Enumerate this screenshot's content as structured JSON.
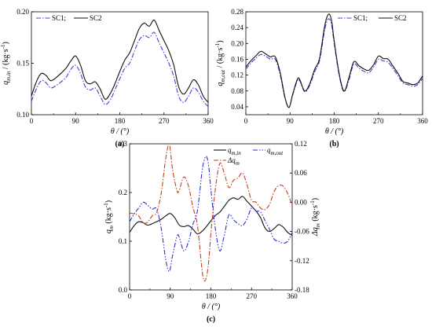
{
  "chart_data": [
    {
      "id": "a",
      "type": "line",
      "panel_label": "(a)",
      "xlabel": "θ / (°)",
      "ylabel": "q_m,in / (kg·s⁻¹)",
      "ylabel_main": "q",
      "ylabel_sub": "m,in",
      "ylabel_unit": " / (kg·s",
      "ylabel_sup": "-1",
      "ylabel_close": ")",
      "xlim": [
        0,
        360
      ],
      "ylim": [
        0.1,
        0.2
      ],
      "xticks": [
        0,
        90,
        180,
        270,
        360
      ],
      "yticks": [
        0.1,
        0.15,
        0.2
      ],
      "ytick_labels": [
        "0.10",
        "0.15",
        "0.20"
      ],
      "legend": [
        "SC1;",
        "SC2"
      ],
      "legend_position": "top-left",
      "series": [
        {
          "name": "SC1;",
          "style": "dashdot",
          "color": "#4040e0",
          "x": [
            0,
            10,
            20,
            30,
            40,
            55,
            70,
            80,
            90,
            100,
            110,
            120,
            130,
            140,
            150,
            160,
            170,
            180,
            190,
            200,
            210,
            220,
            230,
            240,
            250,
            260,
            270,
            280,
            290,
            300,
            310,
            320,
            330,
            340,
            350,
            360
          ],
          "y": [
            0.113,
            0.125,
            0.133,
            0.131,
            0.126,
            0.13,
            0.136,
            0.144,
            0.148,
            0.14,
            0.127,
            0.124,
            0.126,
            0.118,
            0.11,
            0.114,
            0.124,
            0.135,
            0.145,
            0.15,
            0.162,
            0.173,
            0.177,
            0.175,
            0.18,
            0.17,
            0.16,
            0.15,
            0.137,
            0.118,
            0.112,
            0.118,
            0.126,
            0.122,
            0.113,
            0.108
          ]
        },
        {
          "name": "SC2",
          "style": "solid",
          "color": "#111111",
          "x": [
            0,
            10,
            20,
            30,
            40,
            55,
            70,
            80,
            90,
            100,
            110,
            120,
            130,
            140,
            150,
            160,
            170,
            180,
            190,
            200,
            210,
            220,
            230,
            240,
            250,
            260,
            270,
            280,
            290,
            300,
            310,
            320,
            330,
            340,
            350,
            360
          ],
          "y": [
            0.118,
            0.132,
            0.14,
            0.138,
            0.133,
            0.138,
            0.145,
            0.152,
            0.157,
            0.148,
            0.133,
            0.13,
            0.132,
            0.125,
            0.115,
            0.12,
            0.13,
            0.142,
            0.153,
            0.16,
            0.172,
            0.184,
            0.189,
            0.186,
            0.192,
            0.182,
            0.172,
            0.162,
            0.148,
            0.127,
            0.12,
            0.126,
            0.134,
            0.129,
            0.118,
            0.112
          ]
        }
      ]
    },
    {
      "id": "b",
      "type": "line",
      "panel_label": "(b)",
      "xlabel": "θ / (°)",
      "ylabel": "q_m,out / (kg·s⁻¹)",
      "ylabel_main": "q",
      "ylabel_sub": "m,out",
      "ylabel_unit": " / (kg·s",
      "ylabel_sup": "-1",
      "ylabel_close": ")",
      "xlim": [
        0,
        360
      ],
      "ylim": [
        0.02,
        0.28
      ],
      "xticks": [
        0,
        90,
        180,
        270,
        360
      ],
      "yticks": [
        0.04,
        0.08,
        0.12,
        0.16,
        0.2,
        0.24,
        0.28
      ],
      "ytick_labels": [
        "0.04",
        "0.08",
        "0.12",
        "0.16",
        "0.20",
        "0.24",
        "0.28"
      ],
      "legend": [
        "SC1;",
        "SC2"
      ],
      "legend_position": "top-right",
      "series": [
        {
          "name": "SC1;",
          "style": "dashdot",
          "color": "#4040e0",
          "x": [
            0,
            10,
            20,
            30,
            40,
            50,
            60,
            70,
            80,
            88,
            95,
            105,
            110,
            120,
            130,
            140,
            150,
            160,
            165,
            170,
            175,
            180,
            190,
            200,
            210,
            220,
            230,
            240,
            250,
            260,
            270,
            280,
            290,
            300,
            310,
            320,
            330,
            340,
            350,
            360
          ],
          "y": [
            0.135,
            0.15,
            0.162,
            0.172,
            0.168,
            0.16,
            0.16,
            0.12,
            0.06,
            0.04,
            0.068,
            0.106,
            0.105,
            0.078,
            0.094,
            0.128,
            0.156,
            0.23,
            0.255,
            0.262,
            0.245,
            0.2,
            0.12,
            0.078,
            0.108,
            0.148,
            0.138,
            0.13,
            0.126,
            0.14,
            0.16,
            0.156,
            0.152,
            0.136,
            0.118,
            0.1,
            0.096,
            0.092,
            0.096,
            0.112
          ]
        },
        {
          "name": "SC2",
          "style": "solid",
          "color": "#111111",
          "x": [
            0,
            10,
            20,
            30,
            40,
            50,
            60,
            70,
            80,
            88,
            95,
            105,
            110,
            120,
            130,
            140,
            150,
            160,
            165,
            170,
            175,
            180,
            190,
            200,
            210,
            220,
            230,
            240,
            250,
            260,
            270,
            280,
            290,
            300,
            310,
            320,
            330,
            340,
            350,
            360
          ],
          "y": [
            0.14,
            0.156,
            0.168,
            0.18,
            0.174,
            0.166,
            0.166,
            0.126,
            0.062,
            0.038,
            0.07,
            0.11,
            0.108,
            0.08,
            0.098,
            0.134,
            0.162,
            0.24,
            0.266,
            0.274,
            0.255,
            0.206,
            0.124,
            0.08,
            0.114,
            0.154,
            0.144,
            0.136,
            0.132,
            0.146,
            0.168,
            0.162,
            0.16,
            0.142,
            0.124,
            0.104,
            0.1,
            0.096,
            0.1,
            0.118
          ]
        }
      ]
    },
    {
      "id": "c",
      "type": "line",
      "panel_label": "(c)",
      "xlabel": "θ / (°)",
      "ylabel_main": "q",
      "ylabel_sub": "m",
      "ylabel_unit": " (kg·s",
      "ylabel_sup": "-1",
      "ylabel_close": ")",
      "y2label_main": "Δq",
      "y2label_sub": "m",
      "y2label_unit": " (kg·s",
      "y2label_sup": "-1",
      "y2label_close": ")",
      "xlim": [
        0,
        360
      ],
      "ylim": [
        0.0,
        0.3
      ],
      "y2lim": [
        -0.18,
        0.12
      ],
      "xticks": [
        0,
        90,
        180,
        270,
        360
      ],
      "yticks": [
        0.0,
        0.1,
        0.2,
        0.3
      ],
      "ytick_labels": [
        "0.0",
        "0.1",
        "0.2",
        "0.3"
      ],
      "y2ticks": [
        -0.18,
        -0.12,
        -0.06,
        0.0,
        0.06,
        0.12
      ],
      "y2tick_labels": [
        "-0.18",
        "-0.12",
        "-0.06",
        "0.00",
        "0.06",
        "0.12"
      ],
      "legend": [
        "q_m,in",
        "q_m,out",
        "Δq_m"
      ],
      "legend_position": "top-right",
      "series": [
        {
          "name": "q_m,in",
          "label_main": "q",
          "label_sub": "m,in",
          "style": "solid",
          "color": "#111111",
          "axis": "left",
          "x": [
            0,
            10,
            20,
            30,
            40,
            55,
            70,
            80,
            90,
            100,
            110,
            120,
            130,
            140,
            150,
            160,
            170,
            180,
            190,
            200,
            210,
            220,
            230,
            240,
            250,
            260,
            270,
            280,
            290,
            300,
            310,
            320,
            330,
            340,
            350,
            360
          ],
          "y": [
            0.118,
            0.132,
            0.14,
            0.138,
            0.133,
            0.138,
            0.145,
            0.152,
            0.157,
            0.148,
            0.133,
            0.13,
            0.132,
            0.125,
            0.115,
            0.12,
            0.13,
            0.142,
            0.153,
            0.16,
            0.172,
            0.184,
            0.189,
            0.186,
            0.192,
            0.182,
            0.172,
            0.162,
            0.148,
            0.127,
            0.12,
            0.126,
            0.134,
            0.129,
            0.118,
            0.112
          ]
        },
        {
          "name": "q_m,out",
          "label_main": "q",
          "label_sub": "m,out",
          "style": "dashdotdot",
          "color": "#3030d0",
          "axis": "left",
          "x": [
            0,
            10,
            20,
            30,
            40,
            50,
            60,
            70,
            80,
            88,
            95,
            105,
            110,
            120,
            130,
            140,
            150,
            160,
            165,
            170,
            175,
            180,
            190,
            200,
            210,
            220,
            230,
            240,
            250,
            260,
            270,
            280,
            290,
            300,
            310,
            320,
            330,
            340,
            350,
            360
          ],
          "y": [
            0.14,
            0.156,
            0.168,
            0.18,
            0.174,
            0.166,
            0.166,
            0.126,
            0.062,
            0.038,
            0.07,
            0.11,
            0.108,
            0.08,
            0.098,
            0.134,
            0.162,
            0.24,
            0.266,
            0.274,
            0.255,
            0.206,
            0.124,
            0.08,
            0.114,
            0.154,
            0.144,
            0.136,
            0.132,
            0.146,
            0.168,
            0.162,
            0.16,
            0.142,
            0.124,
            0.104,
            0.1,
            0.096,
            0.1,
            0.118
          ]
        },
        {
          "name": "Δq_m",
          "label_main": "Δq",
          "label_sub": "m",
          "style": "dashdot",
          "color": "#c04020",
          "axis": "right",
          "x": [
            0,
            10,
            20,
            30,
            40,
            50,
            60,
            70,
            80,
            88,
            95,
            105,
            110,
            120,
            130,
            140,
            150,
            160,
            165,
            170,
            175,
            180,
            190,
            200,
            210,
            220,
            230,
            240,
            250,
            260,
            270,
            280,
            290,
            300,
            310,
            320,
            330,
            340,
            350,
            360
          ],
          "y": [
            -0.022,
            -0.024,
            -0.028,
            -0.042,
            -0.041,
            -0.028,
            -0.021,
            0.019,
            0.09,
            0.119,
            0.068,
            0.023,
            0.025,
            0.052,
            0.034,
            -0.009,
            -0.047,
            -0.136,
            -0.161,
            -0.154,
            -0.123,
            -0.064,
            0.029,
            0.08,
            0.058,
            0.03,
            0.045,
            0.05,
            0.06,
            0.036,
            0.004,
            0.0,
            -0.012,
            -0.015,
            -0.004,
            0.022,
            0.034,
            0.033,
            0.018,
            -0.006
          ]
        }
      ]
    }
  ]
}
